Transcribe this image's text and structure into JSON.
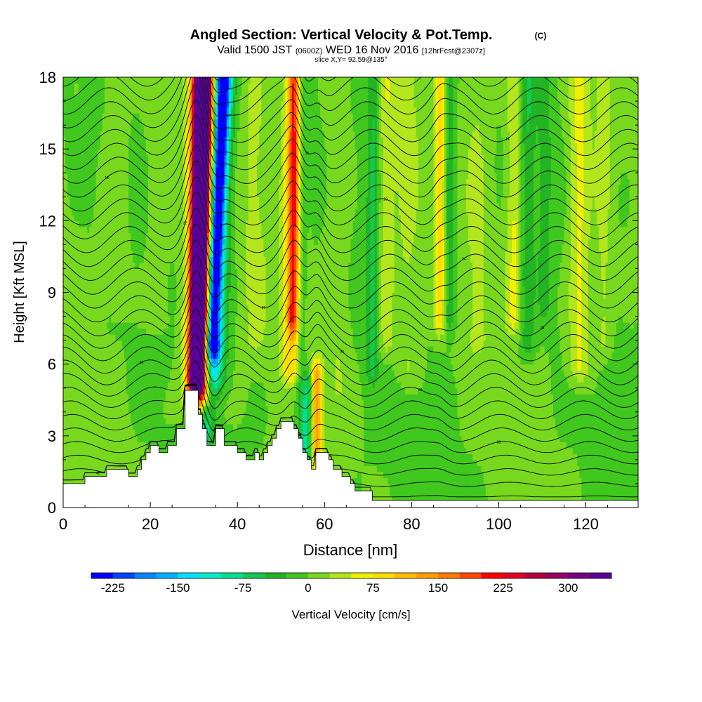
{
  "chart_data": {
    "type": "heatmap",
    "title": "Angled Section: Vertical Velocity & Pot.Temp.",
    "title_unit": "(C)",
    "subtitle_parts": [
      "Valid 1500 JST",
      "(0600Z)",
      "WED 16 Nov 2016",
      "[12hrFcst@2307z]"
    ],
    "slice_label": "slice X,Y= 92,59@135°",
    "xlabel": "Distance [nm]",
    "ylabel": "Height [Kft MSL]",
    "xlim": [
      0,
      132
    ],
    "ylim": [
      0,
      18
    ],
    "x_ticks": [
      "0",
      "20",
      "40",
      "60",
      "80",
      "100",
      "120"
    ],
    "x_tick_values": [
      0,
      20,
      40,
      60,
      80,
      100,
      120
    ],
    "y_ticks": [
      "0",
      "3",
      "6",
      "9",
      "12",
      "15",
      "18"
    ],
    "y_tick_values": [
      0,
      3,
      6,
      9,
      12,
      15,
      18
    ],
    "colorbar": {
      "label": "Vertical Velocity [cm/s]",
      "min": -250,
      "max": 350,
      "step": 25,
      "tick_labels": [
        "-225",
        "-150",
        "-75",
        "0",
        "75",
        "150",
        "225",
        "300"
      ],
      "tick_values": [
        -225,
        -150,
        -75,
        0,
        75,
        150,
        225,
        300
      ],
      "colors": [
        "#0000ff",
        "#0044ff",
        "#0088ff",
        "#00b0ff",
        "#00e0ff",
        "#00eecc",
        "#00e090",
        "#14c850",
        "#22b422",
        "#40c81e",
        "#78d81e",
        "#b4e61e",
        "#f0f000",
        "#ffdc00",
        "#ffbe00",
        "#ffa000",
        "#ff7800",
        "#ff4800",
        "#ff0000",
        "#e00024",
        "#b40040",
        "#960064",
        "#780082",
        "#5a0096"
      ]
    },
    "terrain_profile": [
      {
        "x": 0,
        "h": 1.0
      },
      {
        "x": 5,
        "h": 1.0
      },
      {
        "x": 5,
        "h": 1.3
      },
      {
        "x": 10,
        "h": 1.3
      },
      {
        "x": 10,
        "h": 1.6
      },
      {
        "x": 15,
        "h": 1.6
      },
      {
        "x": 15,
        "h": 1.3
      },
      {
        "x": 17,
        "h": 1.3
      },
      {
        "x": 17,
        "h": 1.6
      },
      {
        "x": 18,
        "h": 1.6
      },
      {
        "x": 18,
        "h": 2.0
      },
      {
        "x": 19,
        "h": 2.0
      },
      {
        "x": 19,
        "h": 2.3
      },
      {
        "x": 20,
        "h": 2.3
      },
      {
        "x": 20,
        "h": 2.6
      },
      {
        "x": 22,
        "h": 2.6
      },
      {
        "x": 22,
        "h": 2.3
      },
      {
        "x": 24,
        "h": 2.3
      },
      {
        "x": 24,
        "h": 2.6
      },
      {
        "x": 26,
        "h": 2.6
      },
      {
        "x": 26,
        "h": 3.3
      },
      {
        "x": 28,
        "h": 3.3
      },
      {
        "x": 28,
        "h": 4.9
      },
      {
        "x": 31,
        "h": 4.9
      },
      {
        "x": 31,
        "h": 3.9
      },
      {
        "x": 32,
        "h": 3.9
      },
      {
        "x": 32,
        "h": 3.3
      },
      {
        "x": 33,
        "h": 3.3
      },
      {
        "x": 33,
        "h": 2.6
      },
      {
        "x": 35,
        "h": 2.6
      },
      {
        "x": 35,
        "h": 3.3
      },
      {
        "x": 37,
        "h": 3.3
      },
      {
        "x": 37,
        "h": 2.6
      },
      {
        "x": 40,
        "h": 2.6
      },
      {
        "x": 40,
        "h": 2.3
      },
      {
        "x": 42,
        "h": 2.3
      },
      {
        "x": 42,
        "h": 2.0
      },
      {
        "x": 44,
        "h": 2.0
      },
      {
        "x": 44,
        "h": 2.3
      },
      {
        "x": 45,
        "h": 2.3
      },
      {
        "x": 45,
        "h": 2.0
      },
      {
        "x": 46,
        "h": 2.0
      },
      {
        "x": 46,
        "h": 2.3
      },
      {
        "x": 47,
        "h": 2.3
      },
      {
        "x": 47,
        "h": 2.6
      },
      {
        "x": 48,
        "h": 2.6
      },
      {
        "x": 48,
        "h": 2.9
      },
      {
        "x": 49,
        "h": 2.9
      },
      {
        "x": 49,
        "h": 3.3
      },
      {
        "x": 50,
        "h": 3.3
      },
      {
        "x": 50,
        "h": 3.6
      },
      {
        "x": 53,
        "h": 3.6
      },
      {
        "x": 53,
        "h": 3.3
      },
      {
        "x": 54,
        "h": 3.3
      },
      {
        "x": 54,
        "h": 2.9
      },
      {
        "x": 55,
        "h": 2.9
      },
      {
        "x": 55,
        "h": 2.3
      },
      {
        "x": 56,
        "h": 2.3
      },
      {
        "x": 56,
        "h": 2.0
      },
      {
        "x": 57,
        "h": 2.0
      },
      {
        "x": 57,
        "h": 1.6
      },
      {
        "x": 58,
        "h": 1.6
      },
      {
        "x": 58,
        "h": 2.3
      },
      {
        "x": 61,
        "h": 2.3
      },
      {
        "x": 61,
        "h": 2.0
      },
      {
        "x": 62,
        "h": 2.0
      },
      {
        "x": 62,
        "h": 1.6
      },
      {
        "x": 64,
        "h": 1.6
      },
      {
        "x": 64,
        "h": 1.3
      },
      {
        "x": 66,
        "h": 1.3
      },
      {
        "x": 66,
        "h": 1.0
      },
      {
        "x": 67,
        "h": 1.0
      },
      {
        "x": 67,
        "h": 0.7
      },
      {
        "x": 71,
        "h": 0.7
      },
      {
        "x": 71,
        "h": 0.3
      },
      {
        "x": 132,
        "h": 0.3
      }
    ],
    "velocity_features": [
      {
        "x": 30.5,
        "w": 1.6,
        "h0": 5.5,
        "h1": 18,
        "v": 325,
        "tilt": 1.2
      },
      {
        "x": 31.5,
        "w": 2.3,
        "h0": 5.2,
        "h1": 18,
        "v": 240,
        "tilt": 1.2
      },
      {
        "x": 31.0,
        "w": 3.4,
        "h0": 4.6,
        "h1": 18,
        "v": 110,
        "tilt": 1.2
      },
      {
        "x": 34.2,
        "w": 1.6,
        "h0": 7.0,
        "h1": 18,
        "v": -240,
        "tilt": 2.5
      },
      {
        "x": 34.0,
        "w": 2.8,
        "h0": 5.5,
        "h1": 18,
        "v": -120,
        "tilt": 2.5
      },
      {
        "x": 32.5,
        "w": 2.0,
        "h0": 3.0,
        "h1": 6.5,
        "v": -80,
        "tilt": 2.0
      },
      {
        "x": 52.5,
        "w": 2.4,
        "h0": 6.0,
        "h1": 18,
        "v": 90,
        "tilt": 0.3
      },
      {
        "x": 52.8,
        "w": 1.3,
        "h0": 8.0,
        "h1": 18,
        "v": 135,
        "tilt": 0.3
      },
      {
        "x": 54.5,
        "w": 1.2,
        "h0": 2.5,
        "h1": 18,
        "v": -50,
        "tilt": 0.2
      },
      {
        "x": 56.0,
        "w": 1.2,
        "h0": 2.0,
        "h1": 5.0,
        "v": -75,
        "tilt": 0.0
      },
      {
        "x": 58.3,
        "w": 1.3,
        "h0": 2.2,
        "h1": 5.5,
        "v": 130,
        "tilt": 0.0
      },
      {
        "x": 71.0,
        "w": 1.4,
        "h0": 6.0,
        "h1": 18,
        "v": -55,
        "tilt": 0.3
      },
      {
        "x": 74.0,
        "w": 2.0,
        "h0": 7.0,
        "h1": 18,
        "v": 40,
        "tilt": 0.3
      },
      {
        "x": 86.5,
        "w": 1.4,
        "h0": 8.0,
        "h1": 18,
        "v": 85,
        "tilt": 0.2
      },
      {
        "x": 88.5,
        "w": 1.4,
        "h0": 8.0,
        "h1": 18,
        "v": -55,
        "tilt": 0.2
      },
      {
        "x": 103.5,
        "w": 1.8,
        "h0": 8.0,
        "h1": 18,
        "v": 55,
        "tilt": 0.2
      },
      {
        "x": 106.5,
        "w": 1.6,
        "h0": 7.0,
        "h1": 18,
        "v": -45,
        "tilt": 0.2
      },
      {
        "x": 110.5,
        "w": 1.6,
        "h0": 8.5,
        "h1": 18,
        "v": -30,
        "tilt": 0.1
      },
      {
        "x": 118.5,
        "w": 2.6,
        "h0": 6.0,
        "h1": 18,
        "v": 60,
        "tilt": 0.1
      },
      {
        "x": 124.0,
        "w": 2.0,
        "h0": 7.0,
        "h1": 18,
        "v": 35,
        "tilt": 0.1
      },
      {
        "x": 12.0,
        "w": 3.0,
        "h0": 9.0,
        "h1": 18,
        "v": 25,
        "tilt": 0.0
      },
      {
        "x": 22.0,
        "w": 3.0,
        "h0": 8.0,
        "h1": 18,
        "v": 20,
        "tilt": 0.0
      },
      {
        "x": 44.0,
        "w": 3.0,
        "h0": 7.0,
        "h1": 18,
        "v": 25,
        "tilt": 0.0
      },
      {
        "x": 63.0,
        "w": 3.0,
        "h0": 5.0,
        "h1": 18,
        "v": 25,
        "tilt": 0.0
      },
      {
        "x": 79.0,
        "w": 3.0,
        "h0": 6.0,
        "h1": 18,
        "v": 30,
        "tilt": 0.0
      },
      {
        "x": 95.0,
        "w": 3.0,
        "h0": 7.0,
        "h1": 18,
        "v": 25,
        "tilt": 0.0
      }
    ],
    "isentropes": {
      "count": 34,
      "label_texts": [
        "42",
        "40",
        "38",
        "36",
        "34",
        "32",
        "30",
        "28",
        "26",
        "24",
        "22",
        "20",
        "18",
        "16",
        "14",
        "12",
        "10"
      ]
    }
  }
}
